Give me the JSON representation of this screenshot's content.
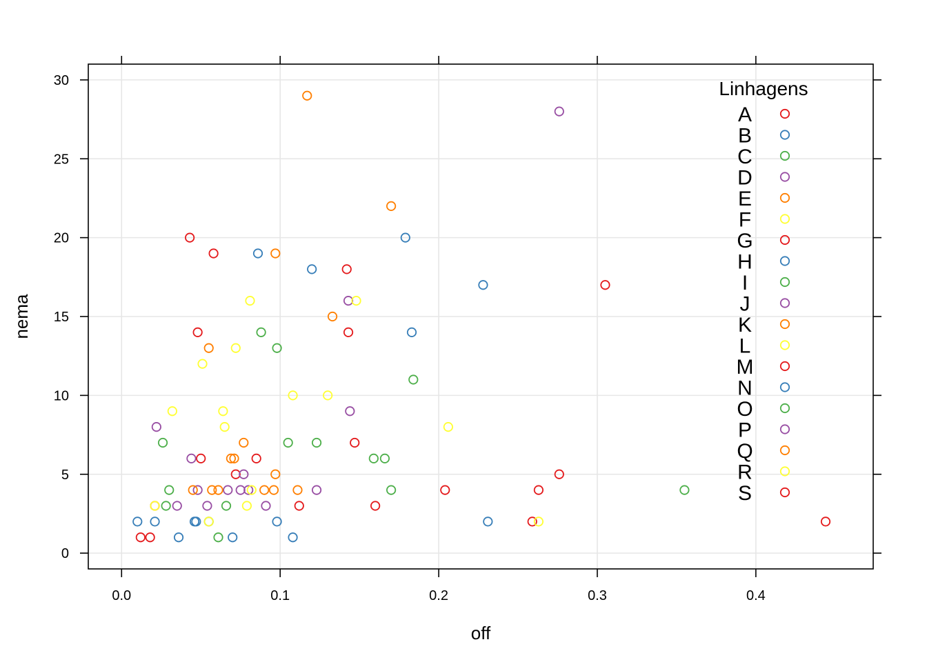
{
  "chart_data": {
    "type": "scatter",
    "title": "",
    "xlabel": "off",
    "ylabel": "nema",
    "xlim": [
      -0.021,
      0.474
    ],
    "ylim": [
      -1,
      31
    ],
    "xticks": [
      0.0,
      0.1,
      0.2,
      0.3,
      0.4
    ],
    "xtick_labels": [
      "0.0",
      "0.1",
      "0.2",
      "0.3",
      "0.4"
    ],
    "yticks": [
      0,
      5,
      10,
      15,
      20,
      25,
      30
    ],
    "ytick_labels": [
      "0",
      "5",
      "10",
      "15",
      "20",
      "25",
      "30"
    ],
    "grid": true,
    "marker": "open-circle",
    "legend": {
      "title": "Linhagens",
      "position": "top-right",
      "entries": [
        {
          "label": "A",
          "color": "#e41a1c"
        },
        {
          "label": "B",
          "color": "#377eb8"
        },
        {
          "label": "C",
          "color": "#4daf4a"
        },
        {
          "label": "D",
          "color": "#984ea3"
        },
        {
          "label": "E",
          "color": "#ff7f00"
        },
        {
          "label": "F",
          "color": "#ffff33"
        },
        {
          "label": "G",
          "color": "#e41a1c"
        },
        {
          "label": "H",
          "color": "#377eb8"
        },
        {
          "label": "I",
          "color": "#4daf4a"
        },
        {
          "label": "J",
          "color": "#984ea3"
        },
        {
          "label": "K",
          "color": "#ff7f00"
        },
        {
          "label": "L",
          "color": "#ffff33"
        },
        {
          "label": "M",
          "color": "#e41a1c"
        },
        {
          "label": "N",
          "color": "#377eb8"
        },
        {
          "label": "O",
          "color": "#4daf4a"
        },
        {
          "label": "P",
          "color": "#984ea3"
        },
        {
          "label": "Q",
          "color": "#ff7f00"
        },
        {
          "label": "R",
          "color": "#ffff33"
        },
        {
          "label": "S",
          "color": "#e41a1c"
        }
      ]
    },
    "series": [
      {
        "color": "#e41a1c",
        "points": [
          [
            0.012,
            1
          ],
          [
            0.018,
            1
          ],
          [
            0.021,
            3
          ],
          [
            0.043,
            20
          ],
          [
            0.048,
            14
          ],
          [
            0.05,
            6
          ],
          [
            0.058,
            19
          ],
          [
            0.072,
            5
          ],
          [
            0.085,
            6
          ],
          [
            0.112,
            3
          ],
          [
            0.142,
            18
          ],
          [
            0.143,
            14
          ],
          [
            0.147,
            7
          ],
          [
            0.16,
            3
          ],
          [
            0.204,
            4
          ],
          [
            0.259,
            2
          ],
          [
            0.263,
            4
          ],
          [
            0.276,
            5
          ],
          [
            0.305,
            17
          ],
          [
            0.444,
            2
          ]
        ]
      },
      {
        "color": "#377eb8",
        "points": [
          [
            0.01,
            2
          ],
          [
            0.021,
            2
          ],
          [
            0.036,
            1
          ],
          [
            0.046,
            2
          ],
          [
            0.047,
            2
          ],
          [
            0.055,
            2
          ],
          [
            0.07,
            1
          ],
          [
            0.086,
            19
          ],
          [
            0.098,
            2
          ],
          [
            0.108,
            1
          ],
          [
            0.12,
            18
          ],
          [
            0.179,
            20
          ],
          [
            0.183,
            14
          ],
          [
            0.228,
            17
          ],
          [
            0.231,
            2
          ]
        ]
      },
      {
        "color": "#4daf4a",
        "points": [
          [
            0.026,
            7
          ],
          [
            0.028,
            3
          ],
          [
            0.03,
            4
          ],
          [
            0.061,
            1
          ],
          [
            0.066,
            3
          ],
          [
            0.088,
            14
          ],
          [
            0.098,
            13
          ],
          [
            0.105,
            7
          ],
          [
            0.123,
            7
          ],
          [
            0.159,
            6
          ],
          [
            0.166,
            6
          ],
          [
            0.17,
            4
          ],
          [
            0.184,
            11
          ],
          [
            0.355,
            4
          ]
        ]
      },
      {
        "color": "#984ea3",
        "points": [
          [
            0.022,
            8
          ],
          [
            0.035,
            3
          ],
          [
            0.044,
            6
          ],
          [
            0.048,
            4
          ],
          [
            0.054,
            3
          ],
          [
            0.067,
            4
          ],
          [
            0.075,
            4
          ],
          [
            0.077,
            5
          ],
          [
            0.08,
            4
          ],
          [
            0.091,
            3
          ],
          [
            0.123,
            4
          ],
          [
            0.143,
            16
          ],
          [
            0.144,
            9
          ],
          [
            0.276,
            28
          ]
        ]
      },
      {
        "color": "#ff7f00",
        "points": [
          [
            0.045,
            4
          ],
          [
            0.055,
            13
          ],
          [
            0.057,
            4
          ],
          [
            0.061,
            4
          ],
          [
            0.069,
            6
          ],
          [
            0.071,
            6
          ],
          [
            0.077,
            7
          ],
          [
            0.09,
            4
          ],
          [
            0.096,
            4
          ],
          [
            0.097,
            19
          ],
          [
            0.097,
            5
          ],
          [
            0.111,
            4
          ],
          [
            0.117,
            29
          ],
          [
            0.133,
            15
          ],
          [
            0.17,
            22
          ]
        ]
      },
      {
        "color": "#ffff33",
        "points": [
          [
            0.021,
            3
          ],
          [
            0.032,
            9
          ],
          [
            0.051,
            12
          ],
          [
            0.055,
            2
          ],
          [
            0.064,
            9
          ],
          [
            0.065,
            8
          ],
          [
            0.072,
            13
          ],
          [
            0.079,
            3
          ],
          [
            0.081,
            16
          ],
          [
            0.082,
            4
          ],
          [
            0.108,
            10
          ],
          [
            0.13,
            10
          ],
          [
            0.148,
            16
          ],
          [
            0.206,
            8
          ],
          [
            0.263,
            2
          ]
        ]
      }
    ]
  }
}
